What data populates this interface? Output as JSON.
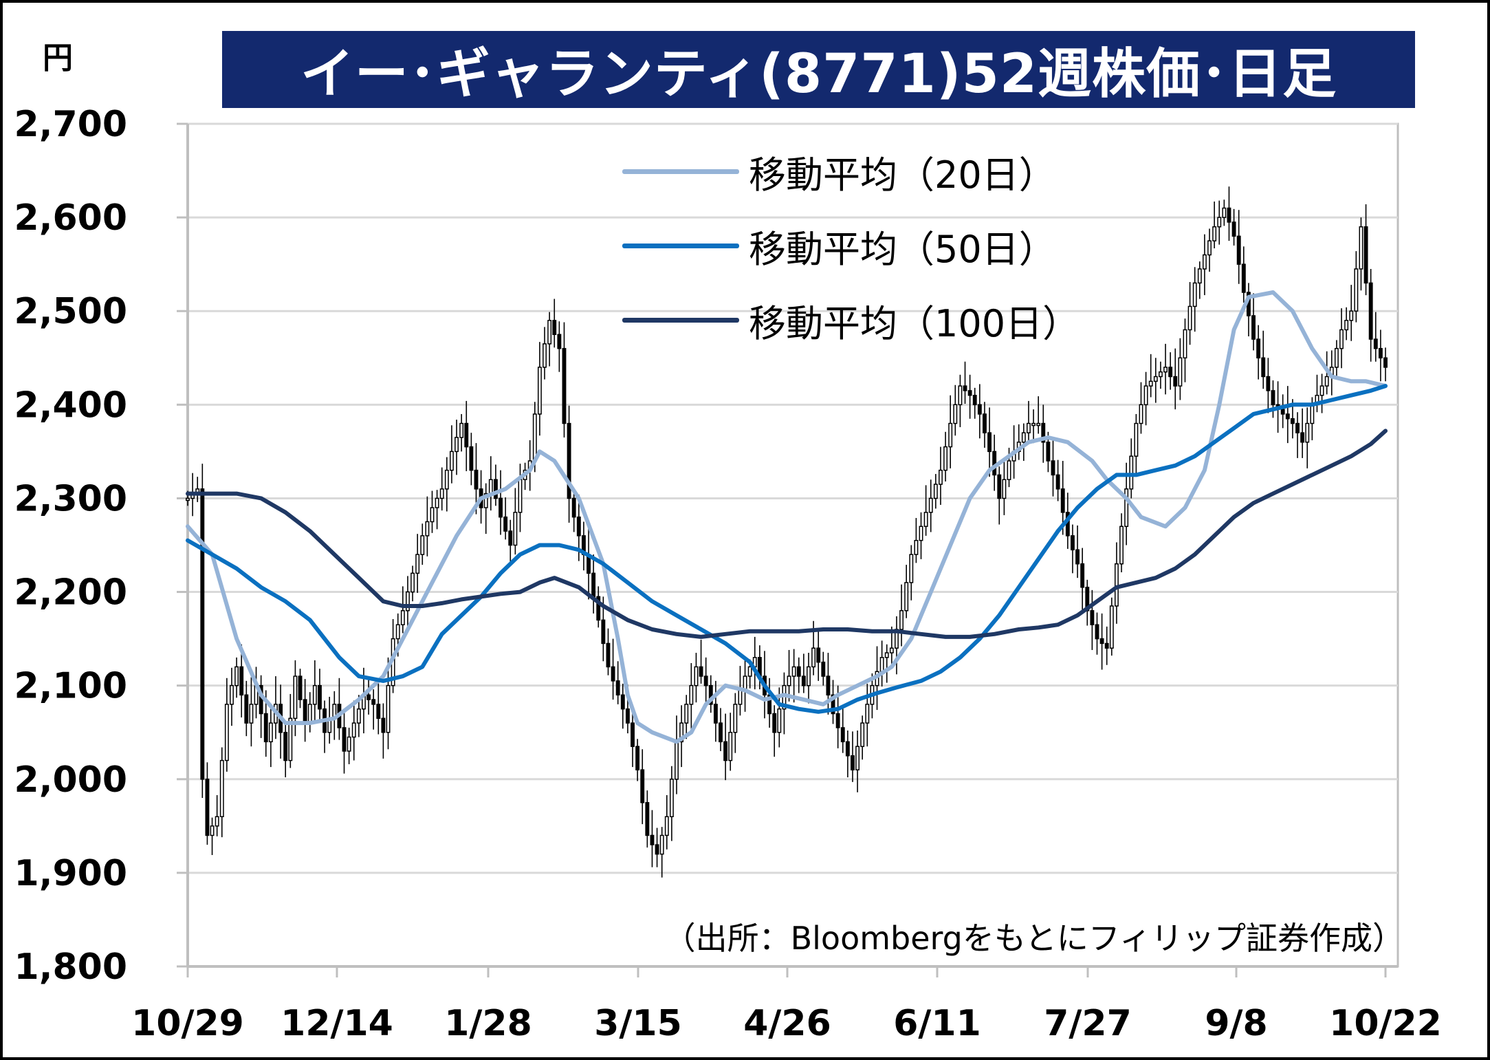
{
  "header": {
    "title": "イー･ギャランティ(8771)52週株価･日足",
    "title_bg": "#13296e",
    "unit": "円"
  },
  "legend": [
    {
      "label": "移動平均（20日）",
      "color": "#95b3d7"
    },
    {
      "label": "移動平均（50日）",
      "color": "#0a70c0"
    },
    {
      "label": "移動平均（100日）",
      "color": "#1f3864"
    }
  ],
  "source": "（出所：Bloombergをもとにフィリップ証券作成）",
  "chart_data": {
    "type": "line",
    "title": "イー･ギャランティ(8771)52週株価･日足",
    "ylabel": "円",
    "ylim": [
      1800,
      2700
    ],
    "yticks": [
      1800,
      1900,
      2000,
      2100,
      2200,
      2300,
      2400,
      2500,
      2600,
      2700
    ],
    "ytick_labels": [
      "1,800",
      "1,900",
      "2,000",
      "2,100",
      "2,200",
      "2,300",
      "2,400",
      "2,500",
      "2,600",
      "2,700"
    ],
    "xtick_labels": [
      "10/29",
      "12/14",
      "1/28",
      "3/15",
      "4/26",
      "6/11",
      "7/27",
      "9/8",
      "10/22"
    ],
    "grid": true,
    "legend_position": "top-center",
    "n_days": 246,
    "series": [
      {
        "name": "移動平均（20日）",
        "color": "#95b3d7",
        "points": [
          [
            0,
            2270
          ],
          [
            5,
            2240
          ],
          [
            10,
            2150
          ],
          [
            15,
            2090
          ],
          [
            20,
            2060
          ],
          [
            25,
            2060
          ],
          [
            30,
            2065
          ],
          [
            35,
            2085
          ],
          [
            40,
            2110
          ],
          [
            45,
            2160
          ],
          [
            50,
            2210
          ],
          [
            55,
            2260
          ],
          [
            60,
            2300
          ],
          [
            65,
            2310
          ],
          [
            70,
            2330
          ],
          [
            72,
            2350
          ],
          [
            75,
            2340
          ],
          [
            80,
            2300
          ],
          [
            85,
            2230
          ],
          [
            88,
            2150
          ],
          [
            90,
            2090
          ],
          [
            92,
            2060
          ],
          [
            95,
            2050
          ],
          [
            100,
            2040
          ],
          [
            103,
            2050
          ],
          [
            106,
            2080
          ],
          [
            110,
            2100
          ],
          [
            114,
            2095
          ],
          [
            118,
            2085
          ],
          [
            122,
            2090
          ],
          [
            126,
            2085
          ],
          [
            130,
            2080
          ],
          [
            133,
            2090
          ],
          [
            137,
            2100
          ],
          [
            141,
            2110
          ],
          [
            144,
            2120
          ],
          [
            148,
            2150
          ],
          [
            152,
            2200
          ],
          [
            156,
            2250
          ],
          [
            160,
            2300
          ],
          [
            164,
            2330
          ],
          [
            168,
            2345
          ],
          [
            172,
            2360
          ],
          [
            176,
            2365
          ],
          [
            180,
            2360
          ],
          [
            185,
            2340
          ],
          [
            188,
            2320
          ],
          [
            192,
            2300
          ],
          [
            195,
            2280
          ],
          [
            200,
            2270
          ],
          [
            204,
            2290
          ],
          [
            208,
            2330
          ],
          [
            211,
            2400
          ],
          [
            214,
            2480
          ],
          [
            217,
            2515
          ],
          [
            222,
            2520
          ],
          [
            226,
            2500
          ],
          [
            230,
            2460
          ],
          [
            234,
            2430
          ],
          [
            238,
            2425
          ],
          [
            241,
            2425
          ],
          [
            245,
            2420
          ]
        ]
      },
      {
        "name": "移動平均（50日）",
        "color": "#0a70c0",
        "points": [
          [
            0,
            2255
          ],
          [
            5,
            2240
          ],
          [
            10,
            2225
          ],
          [
            15,
            2205
          ],
          [
            20,
            2190
          ],
          [
            25,
            2170
          ],
          [
            28,
            2150
          ],
          [
            31,
            2130
          ],
          [
            35,
            2110
          ],
          [
            40,
            2105
          ],
          [
            44,
            2110
          ],
          [
            48,
            2120
          ],
          [
            52,
            2155
          ],
          [
            56,
            2175
          ],
          [
            60,
            2195
          ],
          [
            64,
            2220
          ],
          [
            68,
            2240
          ],
          [
            72,
            2250
          ],
          [
            76,
            2250
          ],
          [
            80,
            2245
          ],
          [
            85,
            2230
          ],
          [
            90,
            2210
          ],
          [
            95,
            2190
          ],
          [
            100,
            2175
          ],
          [
            105,
            2160
          ],
          [
            110,
            2145
          ],
          [
            115,
            2125
          ],
          [
            118,
            2100
          ],
          [
            121,
            2080
          ],
          [
            125,
            2075
          ],
          [
            129,
            2072
          ],
          [
            133,
            2075
          ],
          [
            137,
            2085
          ],
          [
            141,
            2092
          ],
          [
            145,
            2098
          ],
          [
            150,
            2105
          ],
          [
            154,
            2115
          ],
          [
            158,
            2130
          ],
          [
            162,
            2150
          ],
          [
            166,
            2175
          ],
          [
            170,
            2205
          ],
          [
            174,
            2235
          ],
          [
            178,
            2265
          ],
          [
            182,
            2290
          ],
          [
            186,
            2310
          ],
          [
            190,
            2325
          ],
          [
            194,
            2325
          ],
          [
            198,
            2330
          ],
          [
            202,
            2335
          ],
          [
            206,
            2345
          ],
          [
            210,
            2360
          ],
          [
            214,
            2375
          ],
          [
            218,
            2390
          ],
          [
            222,
            2395
          ],
          [
            226,
            2400
          ],
          [
            230,
            2400
          ],
          [
            234,
            2405
          ],
          [
            238,
            2410
          ],
          [
            242,
            2415
          ],
          [
            245,
            2420
          ]
        ]
      },
      {
        "name": "移動平均（100日）",
        "color": "#1f3864",
        "points": [
          [
            0,
            2305
          ],
          [
            5,
            2305
          ],
          [
            10,
            2305
          ],
          [
            15,
            2300
          ],
          [
            20,
            2285
          ],
          [
            25,
            2265
          ],
          [
            30,
            2240
          ],
          [
            35,
            2215
          ],
          [
            40,
            2190
          ],
          [
            44,
            2185
          ],
          [
            48,
            2185
          ],
          [
            52,
            2188
          ],
          [
            56,
            2192
          ],
          [
            60,
            2195
          ],
          [
            64,
            2198
          ],
          [
            68,
            2200
          ],
          [
            72,
            2210
          ],
          [
            75,
            2215
          ],
          [
            80,
            2205
          ],
          [
            85,
            2185
          ],
          [
            90,
            2170
          ],
          [
            95,
            2160
          ],
          [
            100,
            2155
          ],
          [
            105,
            2152
          ],
          [
            110,
            2155
          ],
          [
            115,
            2158
          ],
          [
            120,
            2158
          ],
          [
            125,
            2158
          ],
          [
            130,
            2160
          ],
          [
            135,
            2160
          ],
          [
            140,
            2158
          ],
          [
            145,
            2158
          ],
          [
            150,
            2155
          ],
          [
            155,
            2152
          ],
          [
            160,
            2152
          ],
          [
            165,
            2155
          ],
          [
            170,
            2160
          ],
          [
            174,
            2162
          ],
          [
            178,
            2165
          ],
          [
            182,
            2175
          ],
          [
            186,
            2190
          ],
          [
            190,
            2205
          ],
          [
            194,
            2210
          ],
          [
            198,
            2215
          ],
          [
            202,
            2225
          ],
          [
            206,
            2240
          ],
          [
            210,
            2260
          ],
          [
            214,
            2280
          ],
          [
            218,
            2295
          ],
          [
            222,
            2305
          ],
          [
            226,
            2315
          ],
          [
            230,
            2325
          ],
          [
            234,
            2335
          ],
          [
            238,
            2345
          ],
          [
            242,
            2358
          ],
          [
            245,
            2372
          ]
        ]
      },
      {
        "name": "株価",
        "type": "candlestick",
        "color": "#000000",
        "points": [
          [
            0,
            2300
          ],
          [
            2,
            2310
          ],
          [
            3,
            2000
          ],
          [
            4,
            1940
          ],
          [
            6,
            1960
          ],
          [
            8,
            2080
          ],
          [
            10,
            2120
          ],
          [
            12,
            2060
          ],
          [
            14,
            2100
          ],
          [
            16,
            2040
          ],
          [
            18,
            2080
          ],
          [
            20,
            2020
          ],
          [
            22,
            2110
          ],
          [
            24,
            2060
          ],
          [
            26,
            2100
          ],
          [
            28,
            2050
          ],
          [
            30,
            2080
          ],
          [
            32,
            2030
          ],
          [
            34,
            2060
          ],
          [
            36,
            2090
          ],
          [
            38,
            2080
          ],
          [
            40,
            2050
          ],
          [
            42,
            2150
          ],
          [
            44,
            2180
          ],
          [
            46,
            2220
          ],
          [
            48,
            2260
          ],
          [
            50,
            2290
          ],
          [
            52,
            2310
          ],
          [
            54,
            2350
          ],
          [
            56,
            2380
          ],
          [
            58,
            2330
          ],
          [
            60,
            2290
          ],
          [
            62,
            2320
          ],
          [
            64,
            2280
          ],
          [
            66,
            2250
          ],
          [
            68,
            2320
          ],
          [
            70,
            2340
          ],
          [
            72,
            2440
          ],
          [
            74,
            2490
          ],
          [
            76,
            2460
          ],
          [
            78,
            2300
          ],
          [
            80,
            2260
          ],
          [
            82,
            2220
          ],
          [
            84,
            2170
          ],
          [
            86,
            2120
          ],
          [
            88,
            2090
          ],
          [
            90,
            2060
          ],
          [
            92,
            2010
          ],
          [
            94,
            1940
          ],
          [
            96,
            1920
          ],
          [
            98,
            1960
          ],
          [
            100,
            2040
          ],
          [
            102,
            2080
          ],
          [
            104,
            2120
          ],
          [
            106,
            2100
          ],
          [
            108,
            2060
          ],
          [
            110,
            2020
          ],
          [
            112,
            2080
          ],
          [
            114,
            2110
          ],
          [
            116,
            2130
          ],
          [
            118,
            2090
          ],
          [
            120,
            2050
          ],
          [
            122,
            2100
          ],
          [
            124,
            2120
          ],
          [
            126,
            2100
          ],
          [
            128,
            2140
          ],
          [
            130,
            2110
          ],
          [
            132,
            2070
          ],
          [
            134,
            2040
          ],
          [
            136,
            2010
          ],
          [
            138,
            2060
          ],
          [
            140,
            2100
          ],
          [
            142,
            2130
          ],
          [
            144,
            2140
          ],
          [
            146,
            2180
          ],
          [
            148,
            2240
          ],
          [
            150,
            2270
          ],
          [
            152,
            2300
          ],
          [
            154,
            2330
          ],
          [
            156,
            2380
          ],
          [
            158,
            2420
          ],
          [
            160,
            2410
          ],
          [
            162,
            2390
          ],
          [
            164,
            2350
          ],
          [
            166,
            2300
          ],
          [
            168,
            2340
          ],
          [
            170,
            2360
          ],
          [
            172,
            2380
          ],
          [
            174,
            2380
          ],
          [
            176,
            2340
          ],
          [
            178,
            2310
          ],
          [
            180,
            2260
          ],
          [
            182,
            2230
          ],
          [
            184,
            2180
          ],
          [
            186,
            2150
          ],
          [
            188,
            2140
          ],
          [
            190,
            2230
          ],
          [
            192,
            2310
          ],
          [
            194,
            2380
          ],
          [
            196,
            2420
          ],
          [
            198,
            2430
          ],
          [
            200,
            2440
          ],
          [
            202,
            2420
          ],
          [
            204,
            2480
          ],
          [
            206,
            2530
          ],
          [
            208,
            2560
          ],
          [
            210,
            2590
          ],
          [
            212,
            2610
          ],
          [
            214,
            2580
          ],
          [
            216,
            2520
          ],
          [
            218,
            2470
          ],
          [
            220,
            2430
          ],
          [
            222,
            2400
          ],
          [
            224,
            2390
          ],
          [
            226,
            2380
          ],
          [
            228,
            2360
          ],
          [
            230,
            2400
          ],
          [
            232,
            2420
          ],
          [
            234,
            2440
          ],
          [
            236,
            2480
          ],
          [
            238,
            2500
          ],
          [
            240,
            2590
          ],
          [
            242,
            2470
          ],
          [
            245,
            2440
          ]
        ]
      }
    ]
  }
}
